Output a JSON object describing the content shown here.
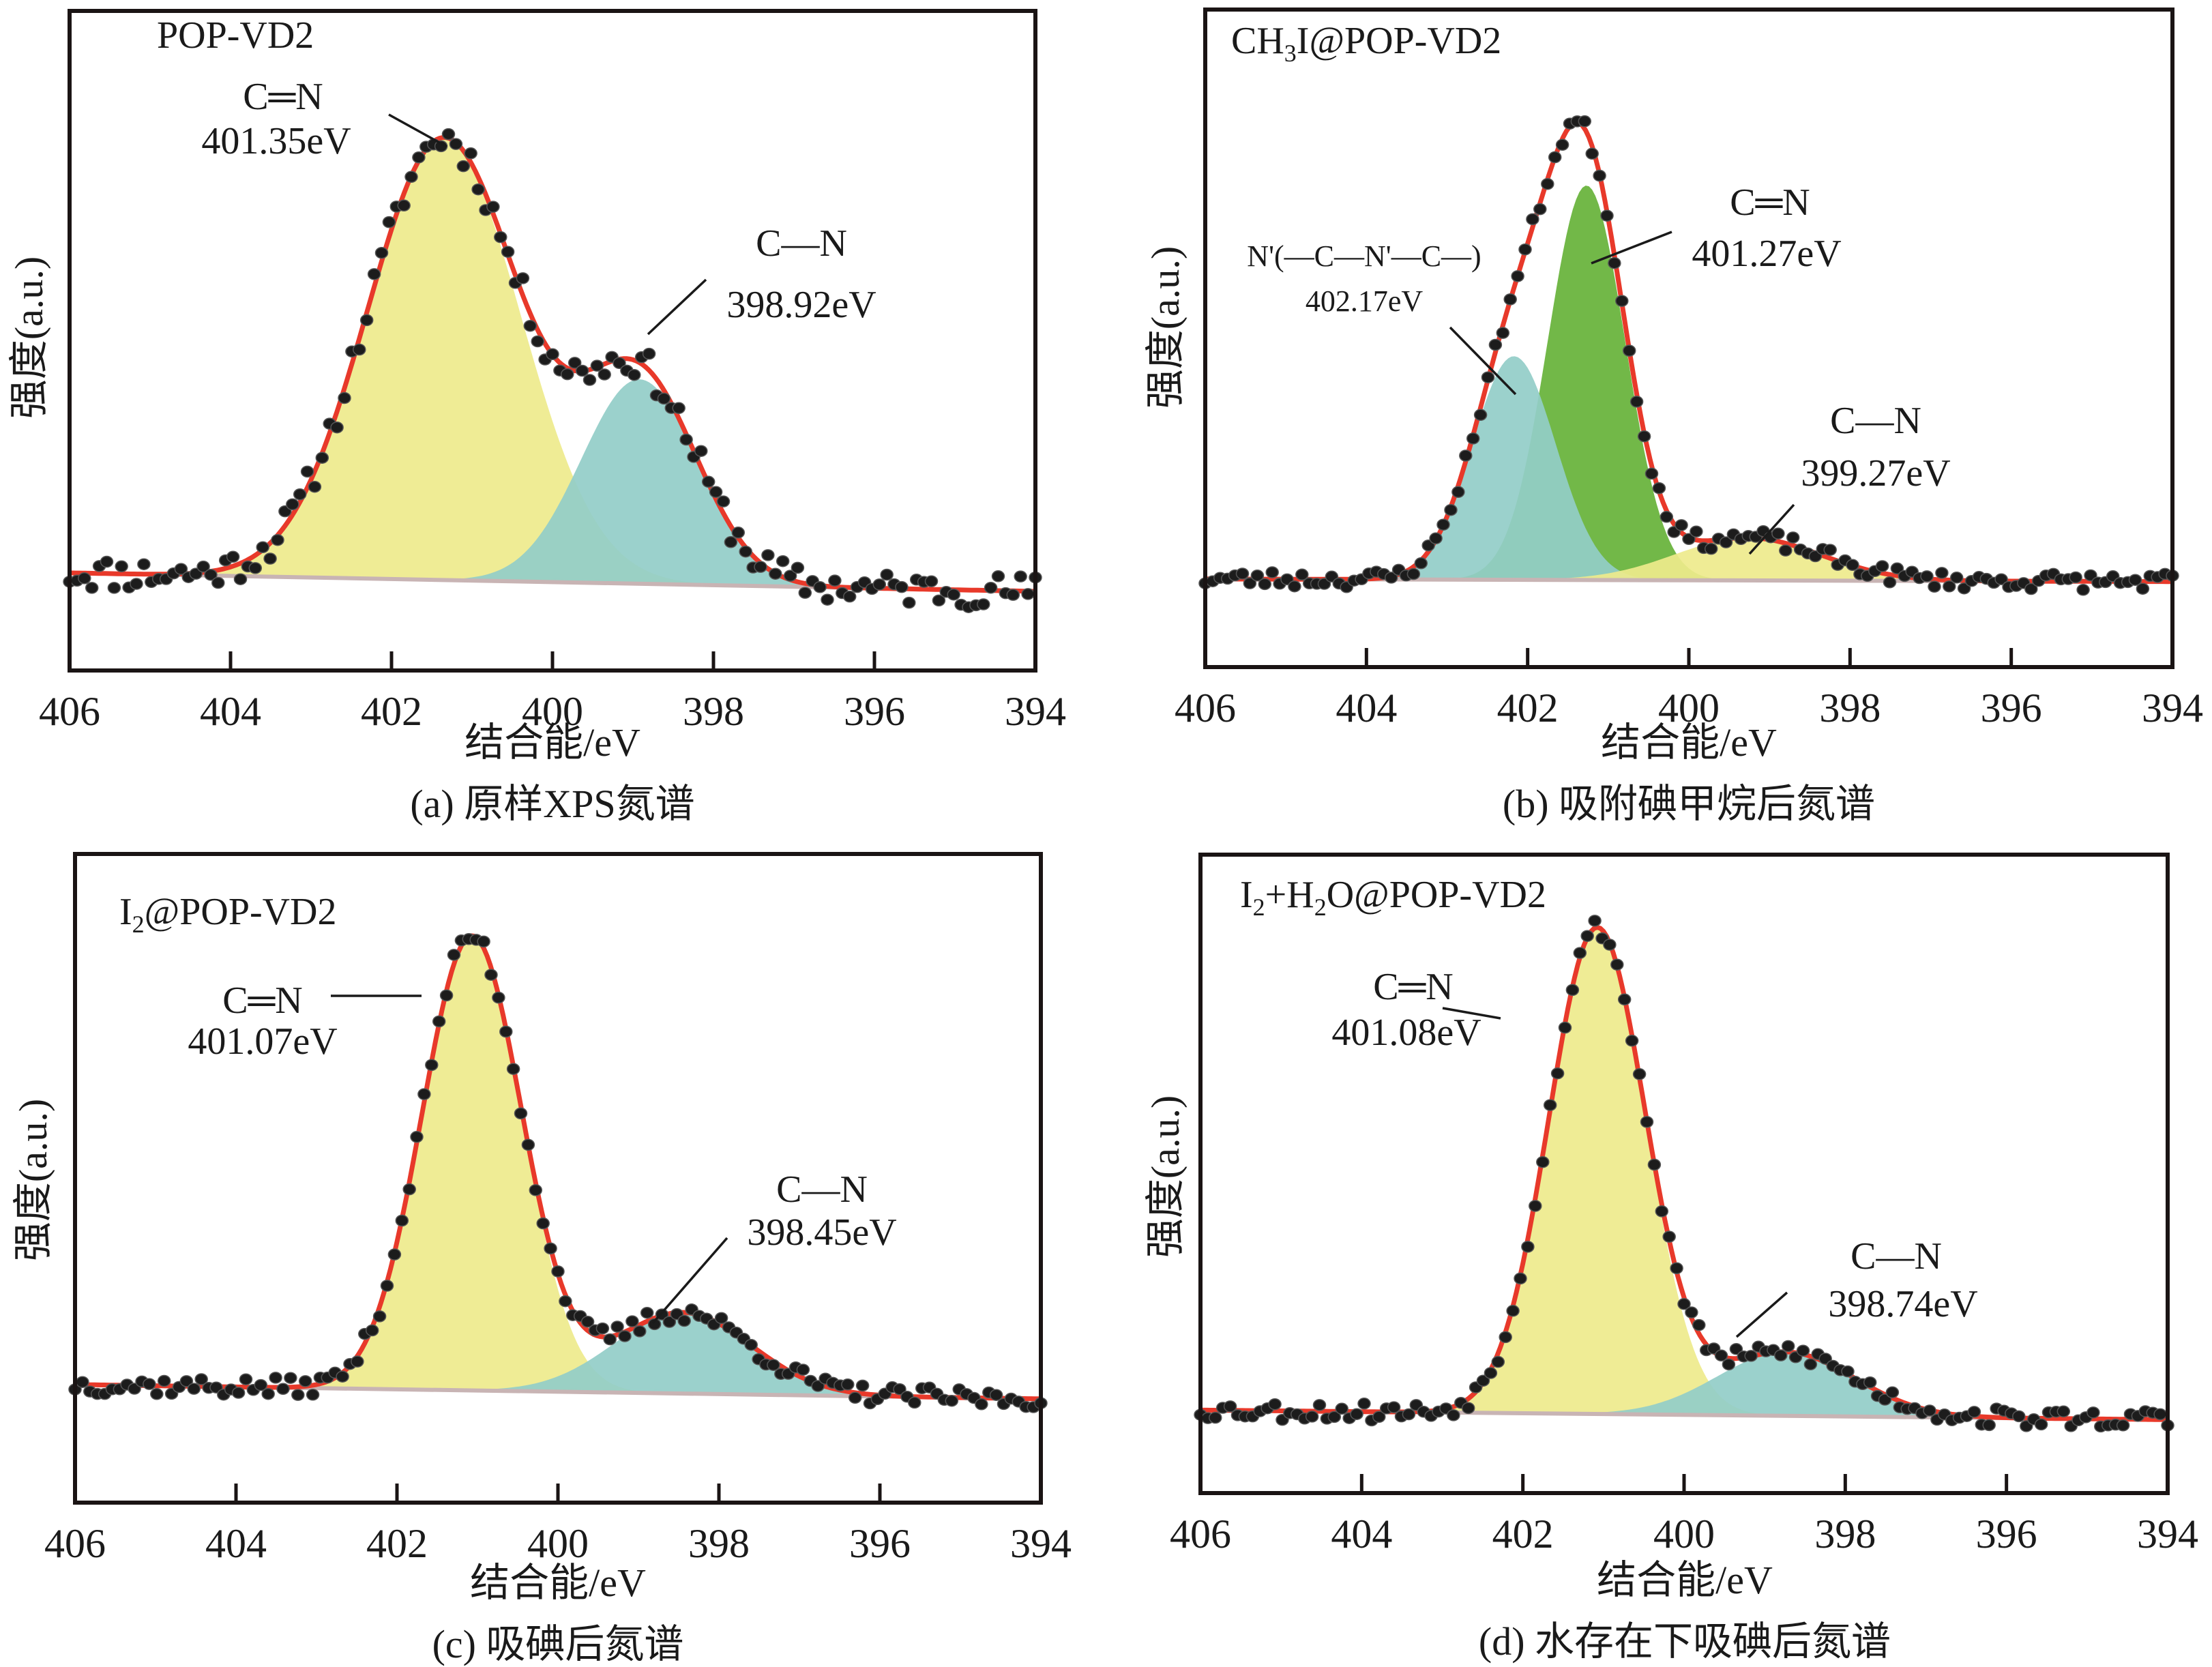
{
  "figure": {
    "colors": {
      "envelope": "#e8392a",
      "points": "#1c1c1c",
      "baseline": "#c8b4b4",
      "yellow": "#eeea8c",
      "teal": "#93cdc8",
      "green": "#6ab43e"
    }
  },
  "chart_data": [
    {
      "type": "area",
      "panel": "a",
      "sample_label": "POP-VD2",
      "caption": "(a) 原样XPS氮谱",
      "xlabel": "结合能/eV",
      "ylabel": "强度(a.u.)",
      "xlim": [
        406,
        394
      ],
      "ylim": [
        0,
        100
      ],
      "x_ticks": [
        "406",
        "404",
        "402",
        "400",
        "398",
        "396",
        "394"
      ],
      "grid": false,
      "baseline": [
        14.8,
        12.0
      ],
      "series": [
        {
          "name": "C═N",
          "binding_energy_eV": 401.35,
          "label": "401.35eV",
          "amplitude": 67,
          "sigma": 0.95,
          "color": "yellow"
        },
        {
          "name": "C—N",
          "binding_energy_eV": 398.92,
          "label": "398.92eV",
          "amplitude": 31,
          "sigma": 0.72,
          "color": "teal"
        }
      ],
      "noise": 2.6
    },
    {
      "type": "area",
      "panel": "b",
      "sample_label": "CH3I@POP-VD2",
      "sample_label_parts": [
        "CH",
        "3",
        "I@POP-VD2"
      ],
      "caption": "(b) 吸附碘甲烷后氮谱",
      "xlabel": "结合能/eV",
      "ylabel": "强度(a.u.)",
      "xlim": [
        406,
        394
      ],
      "ylim": [
        0,
        100
      ],
      "x_ticks": [
        "406",
        "404",
        "402",
        "400",
        "398",
        "396",
        "394"
      ],
      "grid": false,
      "baseline": [
        13.4,
        13.0
      ],
      "series": [
        {
          "name": "N'(—C—N'—C—)",
          "binding_energy_eV": 402.17,
          "label": "402.17eV",
          "amplitude": 34,
          "sigma": 0.52,
          "color": "teal"
        },
        {
          "name": "C═N",
          "binding_energy_eV": 401.27,
          "label": "401.27eV",
          "amplitude": 60,
          "sigma": 0.48,
          "color": "green"
        },
        {
          "name": "C—N",
          "binding_energy_eV": 399.27,
          "label": "399.27eV",
          "amplitude": 6.5,
          "sigma": 0.9,
          "color": "yellow"
        }
      ],
      "noise": 1.3
    },
    {
      "type": "area",
      "panel": "c",
      "sample_label": "I2@POP-VD2",
      "sample_label_parts": [
        "I",
        "2",
        "@POP-VD2"
      ],
      "caption": "(c) 吸碘后氮谱",
      "xlabel": "结合能/eV",
      "ylabel": "强度(a.u.)",
      "xlim": [
        406,
        394
      ],
      "ylim": [
        0,
        100
      ],
      "x_ticks": [
        "406",
        "404",
        "402",
        "400",
        "398",
        "396",
        "394"
      ],
      "grid": false,
      "baseline": [
        18.2,
        16.0
      ],
      "series": [
        {
          "name": "C═N",
          "binding_energy_eV": 401.07,
          "label": "401.07eV",
          "amplitude": 70,
          "sigma": 0.62,
          "color": "yellow"
        },
        {
          "name": "C—N",
          "binding_energy_eV": 398.45,
          "label": "398.45eV",
          "amplitude": 12.5,
          "sigma": 0.85,
          "color": "teal"
        }
      ],
      "noise": 1.5
    },
    {
      "type": "area",
      "panel": "d",
      "sample_label": "I2+H2O@POP-VD2",
      "sample_label_parts": [
        "I",
        "2",
        "+H",
        "2",
        "O@POP-VD2"
      ],
      "caption": "(d) 水存在下吸碘后氮谱",
      "xlabel": "结合能/eV",
      "ylabel": "强度(a.u.)",
      "xlim": [
        406,
        394
      ],
      "ylim": [
        0,
        100
      ],
      "x_ticks": [
        "406",
        "404",
        "402",
        "400",
        "398",
        "396",
        "394"
      ],
      "grid": false,
      "baseline": [
        13.0,
        11.5
      ],
      "series": [
        {
          "name": "C═N",
          "binding_energy_eV": 401.08,
          "label": "401.08eV",
          "amplitude": 76,
          "sigma": 0.6,
          "color": "yellow"
        },
        {
          "name": "C—N",
          "binding_energy_eV": 398.74,
          "label": "398.74eV",
          "amplitude": 10,
          "sigma": 0.85,
          "color": "teal"
        }
      ],
      "noise": 1.5
    }
  ]
}
